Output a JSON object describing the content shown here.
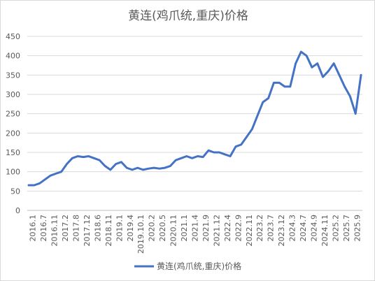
{
  "chart_data": {
    "type": "line",
    "title": "黄连(鸡爪统,重庆)价格",
    "xlabel": "",
    "ylabel": "",
    "ylim": [
      0,
      450
    ],
    "yticks": [
      0,
      50,
      100,
      150,
      200,
      250,
      300,
      350,
      400,
      450
    ],
    "grid": true,
    "legend_position": "bottom",
    "x_tick_labels": [
      "2016.1",
      "2016.7",
      "2016.11",
      "2017.2",
      "2017.8",
      "2017.12",
      "2018.6",
      "2018.11",
      "2019.1",
      "2019.4",
      "2019.10.1",
      "2020.2",
      "2020.5",
      "2020.11",
      "2021.1",
      "2021.4",
      "2021.9",
      "2021.12",
      "2022.4",
      "2022.9",
      "2022.11",
      "2023.2",
      "2023.7",
      "2023.12",
      "2024.3",
      "2024.7",
      "2024.9",
      "2024.11",
      "2025.2",
      "2025.7",
      "2025.9"
    ],
    "series": [
      {
        "name": "黄连(鸡爪统,重庆)价格",
        "color": "#4472c4",
        "values": [
          65,
          65,
          70,
          80,
          90,
          95,
          100,
          120,
          135,
          140,
          138,
          140,
          135,
          130,
          115,
          105,
          120,
          125,
          110,
          105,
          110,
          105,
          108,
          110,
          108,
          110,
          115,
          130,
          135,
          140,
          135,
          140,
          138,
          155,
          150,
          150,
          145,
          140,
          165,
          170,
          190,
          210,
          245,
          280,
          290,
          330,
          330,
          320,
          320,
          380,
          410,
          400,
          370,
          380,
          345,
          360,
          380,
          350,
          320,
          295,
          250,
          350
        ]
      }
    ]
  }
}
